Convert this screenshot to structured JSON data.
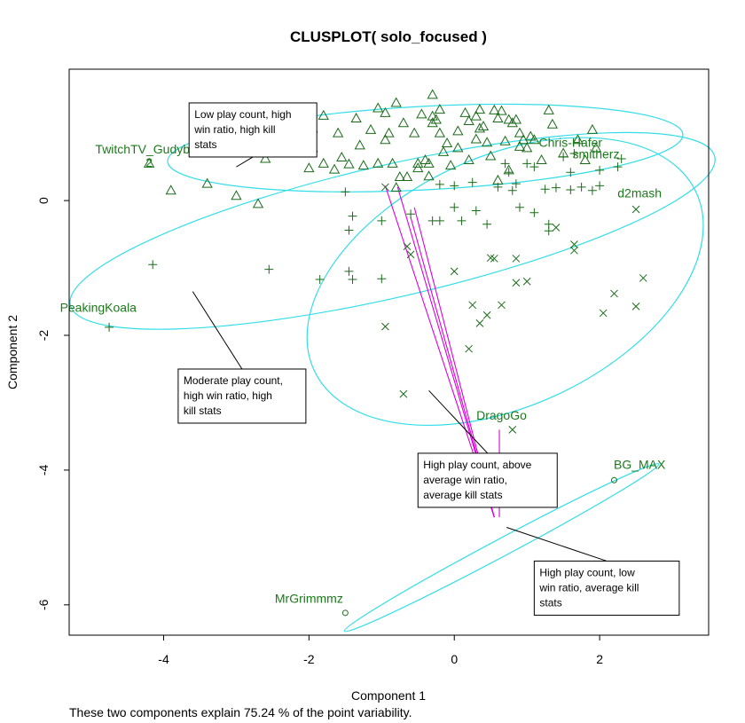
{
  "chart_data": {
    "type": "scatter",
    "title": "CLUSPLOT( solo_focused )",
    "xlabel": "Component 1",
    "ylabel": "Component 2",
    "footnote": "These two components explain 75.24 % of the point variability.",
    "xlim": [
      -5.3,
      3.5
    ],
    "ylim": [
      -6.45,
      1.95
    ],
    "xticks": [
      -4,
      -2,
      0,
      2
    ],
    "yticks": [
      0,
      -2,
      -4,
      -6
    ],
    "colors": {
      "points": "#1a6b1a",
      "ellipse": "#33dde8",
      "links": "#dd00dd",
      "labels": "#1a7a1a",
      "frame": "#000000"
    },
    "clusters": [
      {
        "symbol": "triangle",
        "ellipse": {
          "cx": -0.4,
          "cy": 0.78,
          "rx": 3.55,
          "ry": 0.62,
          "angle_deg": 3
        },
        "points": [
          [
            -4.2,
            0.55
          ],
          [
            -3.9,
            0.15
          ],
          [
            -3.4,
            0.25
          ],
          [
            -3.0,
            0.07
          ],
          [
            -2.7,
            -0.05
          ],
          [
            -2.7,
            0.75
          ],
          [
            -2.65,
            0.7
          ],
          [
            -2.6,
            0.62
          ],
          [
            -2.0,
            0.48
          ],
          [
            -1.95,
            0.78
          ],
          [
            -1.95,
            1.07
          ],
          [
            -1.8,
            0.55
          ],
          [
            -1.8,
            1.26
          ],
          [
            -1.65,
            0.46
          ],
          [
            -1.6,
            1.0
          ],
          [
            -1.55,
            0.64
          ],
          [
            -1.45,
            0.54
          ],
          [
            -1.35,
            1.22
          ],
          [
            -1.3,
            0.82
          ],
          [
            -1.25,
            0.52
          ],
          [
            -1.15,
            1.05
          ],
          [
            -1.05,
            0.55
          ],
          [
            -1.05,
            1.37
          ],
          [
            -0.95,
            1.3
          ],
          [
            -0.95,
            0.9
          ],
          [
            -0.9,
            1.0
          ],
          [
            -0.85,
            0.55
          ],
          [
            -0.8,
            0.19
          ],
          [
            -0.8,
            1.45
          ],
          [
            -0.75,
            0.35
          ],
          [
            -0.7,
            1.15
          ],
          [
            -0.65,
            0.35
          ],
          [
            -0.55,
            1.0
          ],
          [
            -0.5,
            0.48
          ],
          [
            -0.5,
            0.55
          ],
          [
            -0.45,
            1.28
          ],
          [
            -0.4,
            0.6
          ],
          [
            -0.35,
            0.55
          ],
          [
            -0.35,
            0.36
          ],
          [
            -0.3,
            1.15
          ],
          [
            -0.3,
            1.25
          ],
          [
            -0.3,
            1.57
          ],
          [
            -0.25,
            1.2
          ],
          [
            -0.2,
            1.35
          ],
          [
            -0.2,
            1.0
          ],
          [
            -0.15,
            0.72
          ],
          [
            -0.1,
            0.85
          ],
          [
            -0.05,
            0.52
          ],
          [
            0.05,
            0.78
          ],
          [
            0.05,
            1.03
          ],
          [
            0.15,
            1.3
          ],
          [
            0.2,
            0.6
          ],
          [
            0.2,
            1.18
          ],
          [
            0.3,
            1.25
          ],
          [
            0.3,
            0.91
          ],
          [
            0.35,
            1.35
          ],
          [
            0.35,
            1.07
          ],
          [
            0.4,
            1.1
          ],
          [
            0.45,
            0.86
          ],
          [
            0.5,
            0.66
          ],
          [
            0.55,
            1.34
          ],
          [
            0.6,
            1.22
          ],
          [
            0.6,
            0.3
          ],
          [
            0.65,
            1.33
          ],
          [
            0.7,
            0.88
          ],
          [
            0.75,
            1.2
          ],
          [
            0.75,
            0.45
          ],
          [
            0.8,
            1.15
          ],
          [
            0.85,
            1.2
          ],
          [
            0.9,
            1.0
          ],
          [
            0.9,
            0.8
          ],
          [
            0.95,
            0.9
          ],
          [
            1.0,
            0.78
          ],
          [
            1.05,
            0.95
          ],
          [
            1.1,
            0.9
          ],
          [
            1.2,
            0.6
          ],
          [
            1.3,
            1.34
          ],
          [
            1.35,
            1.13
          ],
          [
            1.5,
            0.7
          ],
          [
            1.7,
            0.9
          ],
          [
            1.8,
            0.6
          ],
          [
            1.9,
            1.05
          ],
          [
            1.95,
            0.78
          ]
        ]
      },
      {
        "symbol": "plus",
        "ellipse": {
          "cx": -0.85,
          "cy": -0.45,
          "rx": 4.55,
          "ry": 0.98,
          "angle_deg": 13
        },
        "points": [
          [
            -4.75,
            -1.88
          ],
          [
            -4.15,
            -0.95
          ],
          [
            -2.55,
            -1.02
          ],
          [
            -1.85,
            -1.17
          ],
          [
            -1.5,
            0.13
          ],
          [
            -1.45,
            -1.05
          ],
          [
            -1.4,
            -1.17
          ],
          [
            -1.45,
            -0.44
          ],
          [
            -1.4,
            -0.23
          ],
          [
            -1.0,
            -0.3
          ],
          [
            -1.0,
            -1.16
          ],
          [
            -0.6,
            -0.2
          ],
          [
            -0.3,
            -0.3
          ],
          [
            -0.2,
            0.24
          ],
          [
            -0.2,
            -0.3
          ],
          [
            0.0,
            0.22
          ],
          [
            0.0,
            -0.1
          ],
          [
            0.1,
            -0.3
          ],
          [
            0.25,
            0.27
          ],
          [
            0.3,
            -0.15
          ],
          [
            0.45,
            -0.35
          ],
          [
            0.6,
            0.2
          ],
          [
            0.7,
            0.55
          ],
          [
            0.75,
            0.42
          ],
          [
            0.8,
            0.15
          ],
          [
            0.85,
            0.25
          ],
          [
            0.9,
            -0.1
          ],
          [
            1.0,
            0.55
          ],
          [
            1.1,
            0.5
          ],
          [
            1.1,
            -0.18
          ],
          [
            1.25,
            0.17
          ],
          [
            1.3,
            -0.35
          ],
          [
            1.3,
            -0.45
          ],
          [
            1.4,
            0.19
          ],
          [
            1.5,
            0.65
          ],
          [
            1.6,
            0.16
          ],
          [
            1.6,
            0.42
          ],
          [
            1.65,
            0.7
          ],
          [
            1.75,
            0.2
          ],
          [
            1.9,
            0.15
          ],
          [
            2.0,
            0.45
          ],
          [
            2.0,
            0.22
          ],
          [
            2.25,
            0.5
          ],
          [
            2.3,
            0.62
          ]
        ]
      },
      {
        "symbol": "cross",
        "ellipse": {
          "cx": 0.7,
          "cy": -1.2,
          "rx": 2.9,
          "ry": 1.85,
          "angle_deg": 25
        },
        "points": [
          [
            -0.95,
            0.2
          ],
          [
            -0.95,
            -1.87
          ],
          [
            -0.7,
            -2.87
          ],
          [
            -0.65,
            -0.68
          ],
          [
            -0.6,
            -0.8
          ],
          [
            0.0,
            -1.05
          ],
          [
            0.2,
            -2.2
          ],
          [
            0.25,
            -1.55
          ],
          [
            0.35,
            -1.82
          ],
          [
            0.45,
            -1.7
          ],
          [
            0.5,
            -0.85
          ],
          [
            0.55,
            -0.86
          ],
          [
            0.65,
            -1.55
          ],
          [
            0.8,
            -3.4
          ],
          [
            0.85,
            -0.86
          ],
          [
            0.85,
            -1.22
          ],
          [
            1.0,
            -1.2
          ],
          [
            1.4,
            -0.4
          ],
          [
            1.65,
            -0.65
          ],
          [
            1.65,
            -0.74
          ],
          [
            2.05,
            -1.67
          ],
          [
            2.2,
            -1.38
          ],
          [
            2.5,
            -1.57
          ],
          [
            2.6,
            -1.15
          ],
          [
            2.5,
            -0.13
          ]
        ]
      },
      {
        "symbol": "circle",
        "ellipse": {
          "cx": 0.65,
          "cy": -5.15,
          "rx": 2.45,
          "ry": 0.13,
          "angle_deg": 28
        },
        "points": [
          [
            -1.5,
            -6.12
          ],
          [
            1.15,
            -4.42
          ],
          [
            2.2,
            -4.15
          ]
        ]
      }
    ],
    "point_labels": [
      {
        "text": "TwitchTV_Gudybay",
        "x": -4.2,
        "y": 0.7
      },
      {
        "text": "2",
        "x": -4.2,
        "y": 0.5
      },
      {
        "text": "Chris-Hafer",
        "x": 1.6,
        "y": 0.8
      },
      {
        "text": "smitherz",
        "x": 1.95,
        "y": 0.63
      },
      {
        "text": "d2mash",
        "x": 2.55,
        "y": 0.05
      },
      {
        "text": "PeakingKoala",
        "x": -4.9,
        "y": -1.65
      },
      {
        "text": "DragoGo",
        "x": 0.65,
        "y": -3.25
      },
      {
        "text": "BG_MAX",
        "x": 2.55,
        "y": -3.98
      },
      {
        "text": "MrGrimmmz",
        "x": -2.0,
        "y": -5.97
      }
    ],
    "links": [
      {
        "from": [
          -0.95,
          0.22
        ],
        "to": [
          0.55,
          -4.7
        ]
      },
      {
        "from": [
          -0.78,
          0.2
        ],
        "to": [
          0.55,
          -4.7
        ]
      },
      {
        "from": [
          -0.55,
          -0.1
        ],
        "to": [
          0.55,
          -4.7
        ]
      },
      {
        "from": [
          -0.6,
          -0.25
        ],
        "to": [
          0.55,
          -4.7
        ]
      },
      {
        "from": [
          0.62,
          -3.4
        ],
        "to": [
          0.62,
          -4.7
        ]
      }
    ],
    "annotations": [
      {
        "lines": [
          "Low play count, high",
          "win ratio, high kill",
          "stats"
        ],
        "from": [
          -3.65,
          1.45
        ],
        "to": [
          -3.0,
          0.5
        ]
      },
      {
        "lines": [
          "Moderate play count,",
          "high win ratio, high",
          "kill stats"
        ],
        "from": [
          -3.8,
          -2.5
        ],
        "to": [
          -3.6,
          -1.35
        ]
      },
      {
        "lines": [
          "High play count, above",
          "average win ratio,",
          "average kill stats"
        ],
        "from": [
          -0.5,
          -3.75
        ],
        "to": [
          -0.35,
          -2.82
        ]
      },
      {
        "lines": [
          "High play count, low",
          "win ratio, average kill",
          "stats"
        ],
        "from": [
          1.1,
          -5.35
        ],
        "to": [
          0.72,
          -4.85
        ]
      }
    ]
  }
}
